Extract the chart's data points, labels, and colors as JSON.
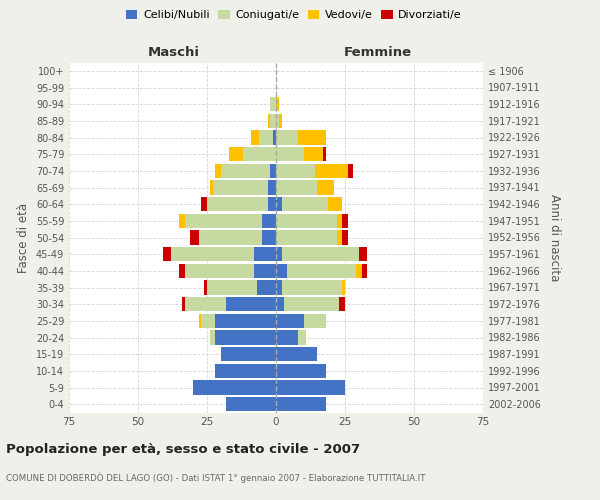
{
  "age_groups": [
    "0-4",
    "5-9",
    "10-14",
    "15-19",
    "20-24",
    "25-29",
    "30-34",
    "35-39",
    "40-44",
    "45-49",
    "50-54",
    "55-59",
    "60-64",
    "65-69",
    "70-74",
    "75-79",
    "80-84",
    "85-89",
    "90-94",
    "95-99",
    "100+"
  ],
  "birth_years": [
    "2002-2006",
    "1997-2001",
    "1992-1996",
    "1987-1991",
    "1982-1986",
    "1977-1981",
    "1972-1976",
    "1967-1971",
    "1962-1966",
    "1957-1961",
    "1952-1956",
    "1947-1951",
    "1942-1946",
    "1937-1941",
    "1932-1936",
    "1927-1931",
    "1922-1926",
    "1917-1921",
    "1912-1916",
    "1907-1911",
    "≤ 1906"
  ],
  "male": {
    "celibi": [
      18,
      30,
      22,
      20,
      22,
      22,
      18,
      7,
      8,
      8,
      5,
      5,
      3,
      3,
      2,
      0,
      1,
      0,
      0,
      0,
      0
    ],
    "coniugati": [
      0,
      0,
      0,
      0,
      2,
      5,
      15,
      18,
      25,
      30,
      23,
      28,
      22,
      20,
      18,
      12,
      5,
      2,
      2,
      0,
      0
    ],
    "vedovi": [
      0,
      0,
      0,
      0,
      0,
      1,
      0,
      0,
      0,
      0,
      0,
      2,
      0,
      1,
      2,
      5,
      3,
      1,
      0,
      0,
      0
    ],
    "divorziati": [
      0,
      0,
      0,
      0,
      0,
      0,
      1,
      1,
      2,
      3,
      3,
      0,
      2,
      0,
      0,
      0,
      0,
      0,
      0,
      0,
      0
    ]
  },
  "female": {
    "nubili": [
      18,
      25,
      18,
      15,
      8,
      10,
      3,
      2,
      4,
      2,
      0,
      0,
      2,
      0,
      0,
      0,
      0,
      0,
      0,
      0,
      0
    ],
    "coniugate": [
      0,
      0,
      0,
      0,
      3,
      8,
      20,
      22,
      25,
      28,
      22,
      22,
      17,
      15,
      14,
      10,
      8,
      1,
      0,
      0,
      0
    ],
    "vedove": [
      0,
      0,
      0,
      0,
      0,
      0,
      0,
      1,
      2,
      0,
      2,
      2,
      5,
      6,
      12,
      7,
      10,
      1,
      1,
      0,
      0
    ],
    "divorziate": [
      0,
      0,
      0,
      0,
      0,
      0,
      2,
      0,
      2,
      3,
      2,
      2,
      0,
      0,
      2,
      1,
      0,
      0,
      0,
      0,
      0
    ]
  },
  "colors": {
    "celibi": "#4472c4",
    "coniugati": "#c5d9a0",
    "vedovi": "#ffc000",
    "divorziati": "#cc0000"
  },
  "xlim": 75,
  "title": "Popolazione per età, sesso e stato civile - 2007",
  "subtitle": "COMUNE DI DOBERDÒ DEL LAGO (GO) - Dati ISTAT 1° gennaio 2007 - Elaborazione TUTTITALIA.IT",
  "ylabel_left": "Fasce di età",
  "ylabel_right": "Anni di nascita",
  "xlabel_left": "Maschi",
  "xlabel_right": "Femmine",
  "bg_color": "#f0f0ea",
  "plot_bg": "#ffffff",
  "grid_color": "#cccccc",
  "center_line_color": "#aaaaaa"
}
